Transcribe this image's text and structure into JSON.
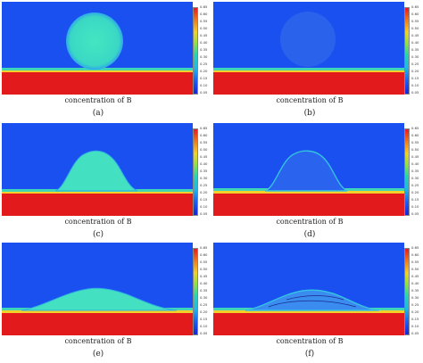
{
  "panels": [
    {
      "caption": "concentration of B",
      "letter": "(a)",
      "ticks": [
        "0.65",
        "0.60",
        "0.55",
        "0.50",
        "0.45",
        "0.40",
        "0.35",
        "0.30",
        "0.25",
        "0.20",
        "0.15",
        "0.10",
        "0.05"
      ]
    },
    {
      "caption": "concentration of B",
      "letter": "(b)",
      "ticks": [
        "0.65",
        "0.60",
        "0.55",
        "0.50",
        "0.45",
        "0.40",
        "0.35",
        "0.30",
        "0.25",
        "0.20",
        "0.15",
        "0.10",
        "0.05"
      ]
    },
    {
      "caption": "concentration of B",
      "letter": "(c)",
      "ticks": [
        "0.65",
        "0.60",
        "0.55",
        "0.50",
        "0.45",
        "0.40",
        "0.35",
        "0.30",
        "0.25",
        "0.20",
        "0.15",
        "0.10",
        "0.05"
      ]
    },
    {
      "caption": "concentration of B",
      "letter": "(d)",
      "ticks": [
        "0.65",
        "0.60",
        "0.55",
        "0.50",
        "0.45",
        "0.40",
        "0.35",
        "0.30",
        "0.25",
        "0.20",
        "0.15",
        "0.10",
        "0.05"
      ]
    },
    {
      "caption": "concentration of B",
      "letter": "(e)",
      "ticks": [
        "0.65",
        "0.60",
        "0.55",
        "0.50",
        "0.45",
        "0.40",
        "0.35",
        "0.30",
        "0.25",
        "0.20",
        "0.15",
        "0.10",
        "0.05"
      ]
    },
    {
      "caption": "concentration of B",
      "letter": "(f)",
      "ticks": [
        "0.65",
        "0.60",
        "0.55",
        "0.50",
        "0.45",
        "0.40",
        "0.35",
        "0.30",
        "0.25",
        "0.20",
        "0.15",
        "0.10",
        "0.05"
      ]
    }
  ],
  "colors": {
    "background": "#1a4ff0",
    "substrate": "#e31a1c",
    "interface": "#f2e43a",
    "droplet": "#3fe0c0",
    "droplet_dim": "#2a6ae8"
  }
}
